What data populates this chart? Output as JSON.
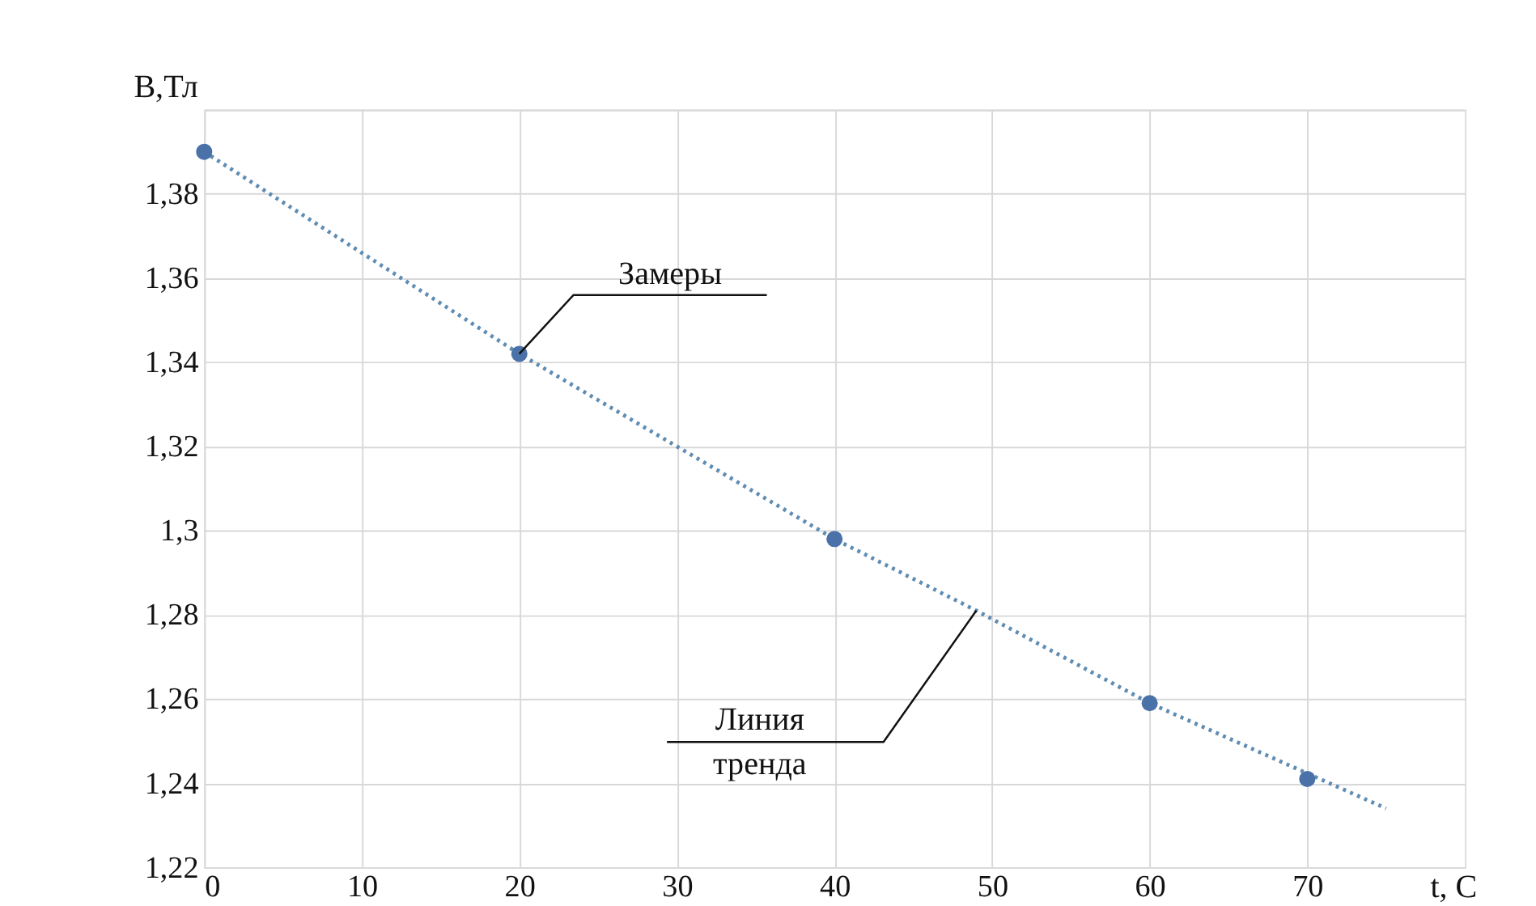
{
  "chart_data": {
    "type": "scatter",
    "xlabel": "t, C",
    "ylabel": "B,Тл",
    "xlim": [
      0,
      80
    ],
    "ylim": [
      1.22,
      1.4
    ],
    "xticks": [
      0,
      10,
      20,
      30,
      40,
      50,
      60,
      70
    ],
    "yticks": [
      {
        "value": 1.22,
        "label": "1,22"
      },
      {
        "value": 1.24,
        "label": "1,24"
      },
      {
        "value": 1.26,
        "label": "1,26"
      },
      {
        "value": 1.28,
        "label": "1,28"
      },
      {
        "value": 1.3,
        "label": "1,3"
      },
      {
        "value": 1.32,
        "label": "1,32"
      },
      {
        "value": 1.34,
        "label": "1,34"
      },
      {
        "value": 1.36,
        "label": "1,36"
      },
      {
        "value": 1.38,
        "label": "1,38"
      },
      {
        "value": 1.4,
        "label": null
      }
    ],
    "grid": true,
    "series": [
      {
        "type": "line",
        "color": "#5f8cb3",
        "line_style": "dotted",
        "marker": "none",
        "x": [
          0,
          20,
          40,
          49,
          60,
          75
        ],
        "values": [
          1.39,
          1.342,
          1.298,
          1.281,
          1.259,
          1.234
        ]
      },
      {
        "color": "#4a72a8",
        "marker": "circle",
        "x": [
          0,
          20,
          40,
          60,
          70
        ],
        "values": [
          1.39,
          1.342,
          1.298,
          1.259,
          1.241
        ]
      }
    ],
    "annotations": [
      {
        "text": "Замеры",
        "x": 20,
        "y": 1.342
      },
      {
        "text": "Линия\nтренда",
        "x": 49,
        "y": 1.281
      }
    ]
  }
}
